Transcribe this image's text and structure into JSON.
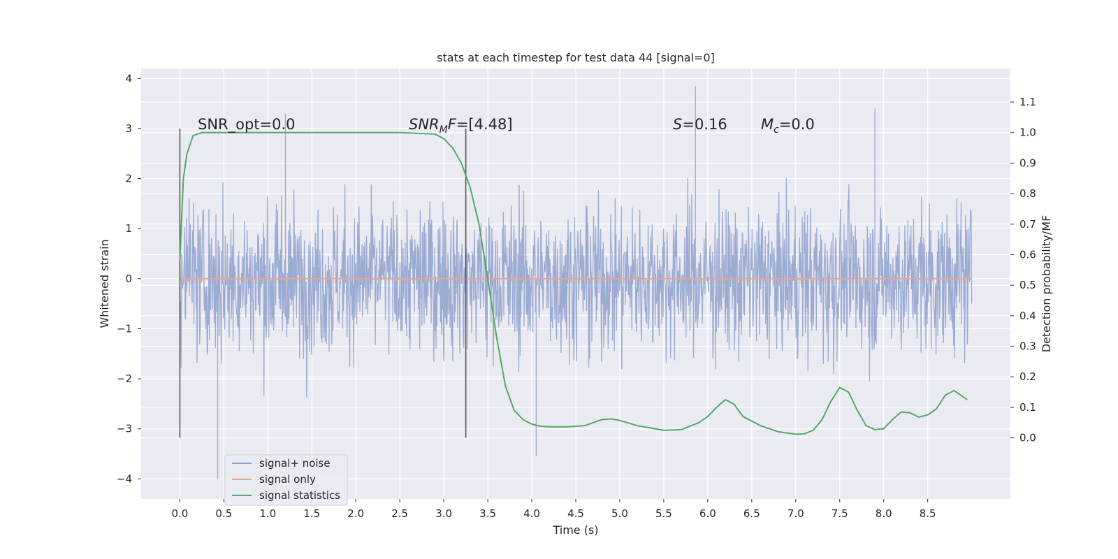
{
  "chart_data": {
    "type": "line",
    "title": "stats at each timestep for test data 44 [signal=0]",
    "xlabel": "Time (s)",
    "ylabel": "Whitened strain",
    "ylabel_right": "Detection probability/MF",
    "xlim": [
      -0.44,
      9.44
    ],
    "ylim": [
      -4.4,
      4.2
    ],
    "ylim_right": [
      -0.2,
      1.21
    ],
    "xticks": [
      "0.0",
      "0.5",
      "1.0",
      "1.5",
      "2.0",
      "2.5",
      "3.0",
      "3.5",
      "4.0",
      "4.5",
      "5.0",
      "5.5",
      "6.0",
      "6.5",
      "7.0",
      "7.5",
      "8.0",
      "8.5"
    ],
    "yticks": [
      "4",
      "3",
      "2",
      "1",
      "0",
      "−1",
      "−2",
      "−3",
      "−4"
    ],
    "yticks_right": [
      "1.1",
      "1.0",
      "0.9",
      "0.8",
      "0.7",
      "0.6",
      "0.5",
      "0.4",
      "0.3",
      "0.2",
      "0.1",
      "0.0"
    ],
    "grid": true,
    "legend_position": "lower-left",
    "annotations": [
      {
        "id": "snr_opt",
        "text": "SNR_opt=0.0"
      },
      {
        "id": "snr_mf_var",
        "text": "SNR",
        "sub": "M",
        "tail": "F",
        "value": "=[4.48]"
      },
      {
        "id": "s_val",
        "var": "S",
        "value": "=0.16"
      },
      {
        "id": "mc_val",
        "var": "M",
        "sub": "c",
        "value": "=0.0"
      }
    ],
    "vertical_markers": [
      0.0,
      3.25
    ],
    "series": [
      {
        "name": "signal+ noise",
        "color": "#8da0cb",
        "kind": "noise",
        "t_start": 0.0,
        "t_end": 9.0,
        "typical_range": [
          -2.0,
          2.2
        ],
        "extremes": {
          "max": 3.85,
          "min": -4.0
        }
      },
      {
        "name": "signal only",
        "color": "#e8a68c",
        "t": [
          0.0,
          9.0
        ],
        "y": [
          0.0,
          0.0
        ]
      },
      {
        "name": "signal statistics",
        "color": "#55a868",
        "axis": "right",
        "t": [
          0.0,
          0.04,
          0.08,
          0.15,
          0.25,
          0.5,
          1.0,
          1.5,
          2.0,
          2.5,
          2.9,
          3.0,
          3.1,
          3.2,
          3.3,
          3.4,
          3.5,
          3.6,
          3.7,
          3.8,
          3.9,
          4.0,
          4.1,
          4.2,
          4.4,
          4.6,
          4.7,
          4.8,
          4.9,
          5.0,
          5.2,
          5.5,
          5.7,
          5.9,
          6.0,
          6.1,
          6.2,
          6.3,
          6.4,
          6.6,
          6.8,
          7.0,
          7.1,
          7.2,
          7.3,
          7.4,
          7.5,
          7.6,
          7.7,
          7.8,
          7.9,
          8.0,
          8.1,
          8.2,
          8.3,
          8.4,
          8.5,
          8.6,
          8.7,
          8.8,
          8.9,
          8.95
        ],
        "y": [
          0.58,
          0.85,
          0.93,
          0.99,
          1.0,
          1.0,
          1.0,
          1.0,
          1.0,
          1.0,
          0.995,
          0.98,
          0.95,
          0.9,
          0.82,
          0.7,
          0.52,
          0.33,
          0.17,
          0.09,
          0.06,
          0.045,
          0.038,
          0.036,
          0.036,
          0.04,
          0.05,
          0.06,
          0.062,
          0.057,
          0.04,
          0.025,
          0.027,
          0.05,
          0.07,
          0.1,
          0.125,
          0.11,
          0.07,
          0.04,
          0.02,
          0.012,
          0.013,
          0.025,
          0.06,
          0.12,
          0.165,
          0.15,
          0.09,
          0.04,
          0.027,
          0.03,
          0.06,
          0.085,
          0.082,
          0.068,
          0.075,
          0.095,
          0.14,
          0.155,
          0.135,
          0.125
        ]
      }
    ]
  }
}
